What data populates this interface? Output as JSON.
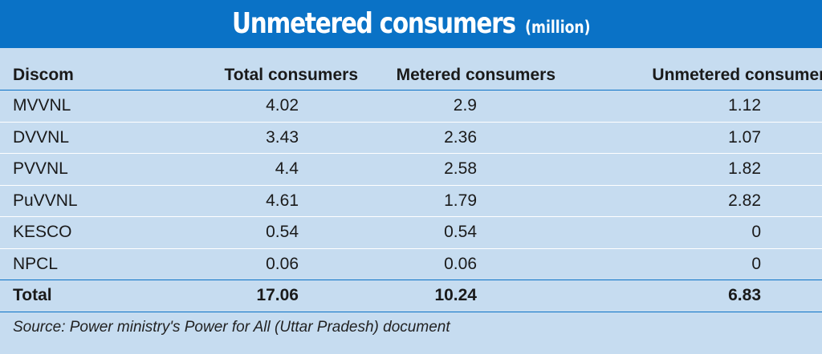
{
  "title": {
    "main": "Unmetered consumers",
    "unit": "(million)"
  },
  "table": {
    "columns": [
      "Discom",
      "Total consumers",
      "Metered consumers",
      "Unmetered consumers"
    ],
    "rows": [
      [
        "MVVNL",
        "4.02",
        "2.9",
        "1.12"
      ],
      [
        "DVVNL",
        "3.43",
        "2.36",
        "1.07"
      ],
      [
        "PVVNL",
        "4.4",
        "2.58",
        "1.82"
      ],
      [
        "PuVVNL",
        "4.61",
        "1.79",
        "2.82"
      ],
      [
        "KESCO",
        "0.54",
        "0.54",
        "0"
      ],
      [
        "NPCL",
        "0.06",
        "0.06",
        "0"
      ]
    ],
    "total": [
      "Total",
      "17.06",
      "10.24",
      "6.83"
    ]
  },
  "source": "Source: Power ministry's Power for All (Uttar Pradesh) document",
  "colors": {
    "header_blue": "#0a72c6",
    "panel_background": "#c6dcf0",
    "row_divider": "#ffffff"
  }
}
